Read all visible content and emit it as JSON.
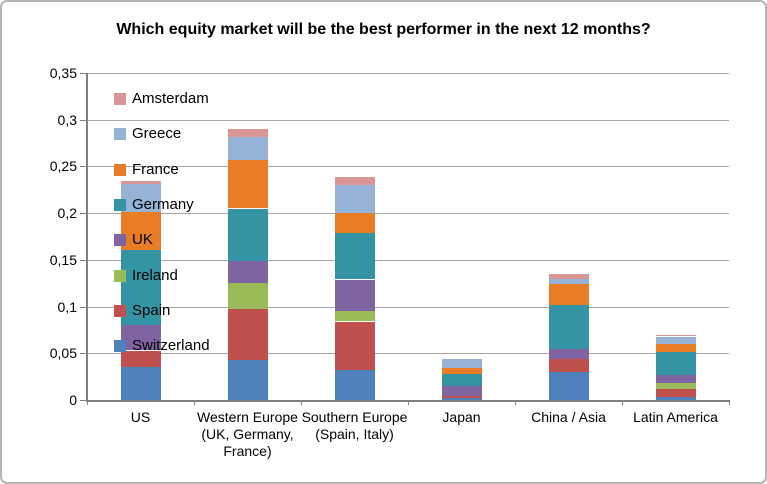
{
  "chart_data": {
    "type": "bar",
    "stacked": true,
    "title": "Which equity market will be the best performer in the next 12 months?",
    "categories": [
      "US",
      "Western Europe (UK, Germany, France)",
      "Southern Europe (Spain, Italy)",
      "Japan",
      "China / Asia",
      "Latin America"
    ],
    "x_tick_labels": [
      "US",
      "Western Europe\n(UK, Germany,\nFrance)",
      "Southern Europe\n(Spain, Italy)",
      "Japan",
      "China / Asia",
      "Latin America"
    ],
    "series": [
      {
        "name": "Switzerland",
        "color": "#4f81bd",
        "values": [
          0.035,
          0.043,
          0.032,
          0.002,
          0.03,
          0.003
        ]
      },
      {
        "name": "Spain",
        "color": "#c0504d",
        "values": [
          0.018,
          0.054,
          0.052,
          0.002,
          0.014,
          0.009
        ]
      },
      {
        "name": "Ireland",
        "color": "#9bbb59",
        "values": [
          0.0,
          0.028,
          0.011,
          0.0,
          0.0,
          0.006
        ]
      },
      {
        "name": "UK",
        "color": "#8064a2",
        "values": [
          0.027,
          0.024,
          0.034,
          0.011,
          0.011,
          0.009
        ]
      },
      {
        "name": "Germany",
        "color": "#3594a4",
        "values": [
          0.081,
          0.056,
          0.05,
          0.013,
          0.047,
          0.024
        ]
      },
      {
        "name": "France",
        "color": "#e97d25",
        "values": [
          0.04,
          0.052,
          0.021,
          0.006,
          0.022,
          0.009
        ]
      },
      {
        "name": "Greece",
        "color": "#95b3d7",
        "values": [
          0.03,
          0.025,
          0.03,
          0.01,
          0.006,
          0.008
        ]
      },
      {
        "name": "Amsterdam",
        "color": "#d99694",
        "values": [
          0.003,
          0.008,
          0.009,
          0.0,
          0.005,
          0.002
        ]
      }
    ],
    "legend_order_top_to_bottom": [
      "Amsterdam",
      "Greece",
      "France",
      "Germany",
      "UK",
      "Ireland",
      "Spain",
      "Switzerland"
    ],
    "legend_position": "overlay-left-inside-plot",
    "grid": true,
    "ylim": [
      0,
      0.35
    ],
    "ytick_step": 0.05,
    "y_tick_labels": [
      "0",
      "0,05",
      "0,1",
      "0,15",
      "0,2",
      "0,25",
      "0,3",
      "0,35"
    ],
    "decimal_separator": ","
  }
}
